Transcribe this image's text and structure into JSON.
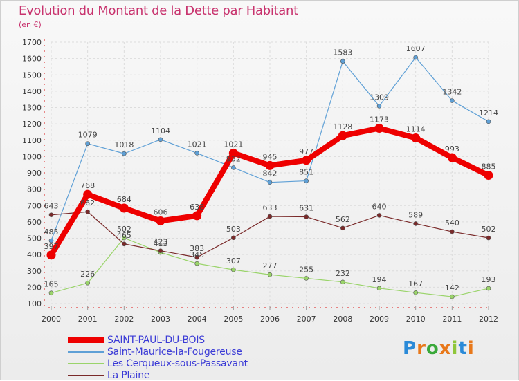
{
  "title": "Evolution du Montant de la Dette par Habitant",
  "subtitle": "(en €)",
  "logo": {
    "text": "Proxiti",
    "letter_colors": [
      "#2a8ad8",
      "#e8781a",
      "#3aa83a",
      "#e8781a",
      "#8fc63a",
      "#2a8ad8",
      "#e8781a"
    ]
  },
  "chart_data": {
    "type": "line",
    "x": [
      2000,
      2001,
      2002,
      2003,
      2004,
      2005,
      2006,
      2007,
      2008,
      2009,
      2010,
      2011,
      2012
    ],
    "ylim": [
      100,
      1700
    ],
    "yticks": [
      100,
      200,
      300,
      400,
      500,
      600,
      700,
      800,
      900,
      1000,
      1100,
      1200,
      1300,
      1400,
      1500,
      1600,
      1700
    ],
    "grid": true,
    "legend_position": "bottom-left",
    "series": [
      {
        "name": "SAINT-PAUL-DU-BOIS",
        "color": "#ee0000",
        "values": [
          397,
          768,
          684,
          606,
          638,
          1021,
          945,
          977,
          1128,
          1173,
          1114,
          993,
          885
        ],
        "labels": [
          "397",
          "768",
          "684",
          "606",
          "638",
          "1021",
          "945",
          "977",
          "1128",
          "1173",
          "1114",
          "993",
          "885"
        ],
        "thick": true
      },
      {
        "name": "Saint-Maurice-la-Fougereuse",
        "color": "#5fa0d6",
        "values": [
          485,
          1079,
          1018,
          1104,
          1021,
          932,
          842,
          851,
          1583,
          1309,
          1607,
          1342,
          1214
        ],
        "labels": [
          "485",
          "1079",
          "1018",
          "1104",
          "1021",
          "932",
          "842",
          "851",
          "1583",
          "1309",
          "1607",
          "1342",
          "1214"
        ]
      },
      {
        "name": "Les Cerqueux-sous-Passavant",
        "color": "#9ad46a",
        "values": [
          165,
          226,
          502,
          413,
          345,
          307,
          277,
          255,
          232,
          194,
          167,
          142,
          193
        ],
        "labels": [
          "165",
          "226",
          "502",
          "413",
          "345",
          "307",
          "277",
          "255",
          "232",
          "194",
          "167",
          "142",
          "193"
        ]
      },
      {
        "name": "La Plaine",
        "color": "#7a2a2a",
        "values": [
          643,
          662,
          465,
          423,
          383,
          503,
          633,
          631,
          562,
          640,
          589,
          540,
          502
        ],
        "labels": [
          "643",
          "662",
          "465",
          "423",
          "383",
          "503",
          "633",
          "631",
          "562",
          "640",
          "589",
          "540",
          "502"
        ]
      }
    ]
  }
}
